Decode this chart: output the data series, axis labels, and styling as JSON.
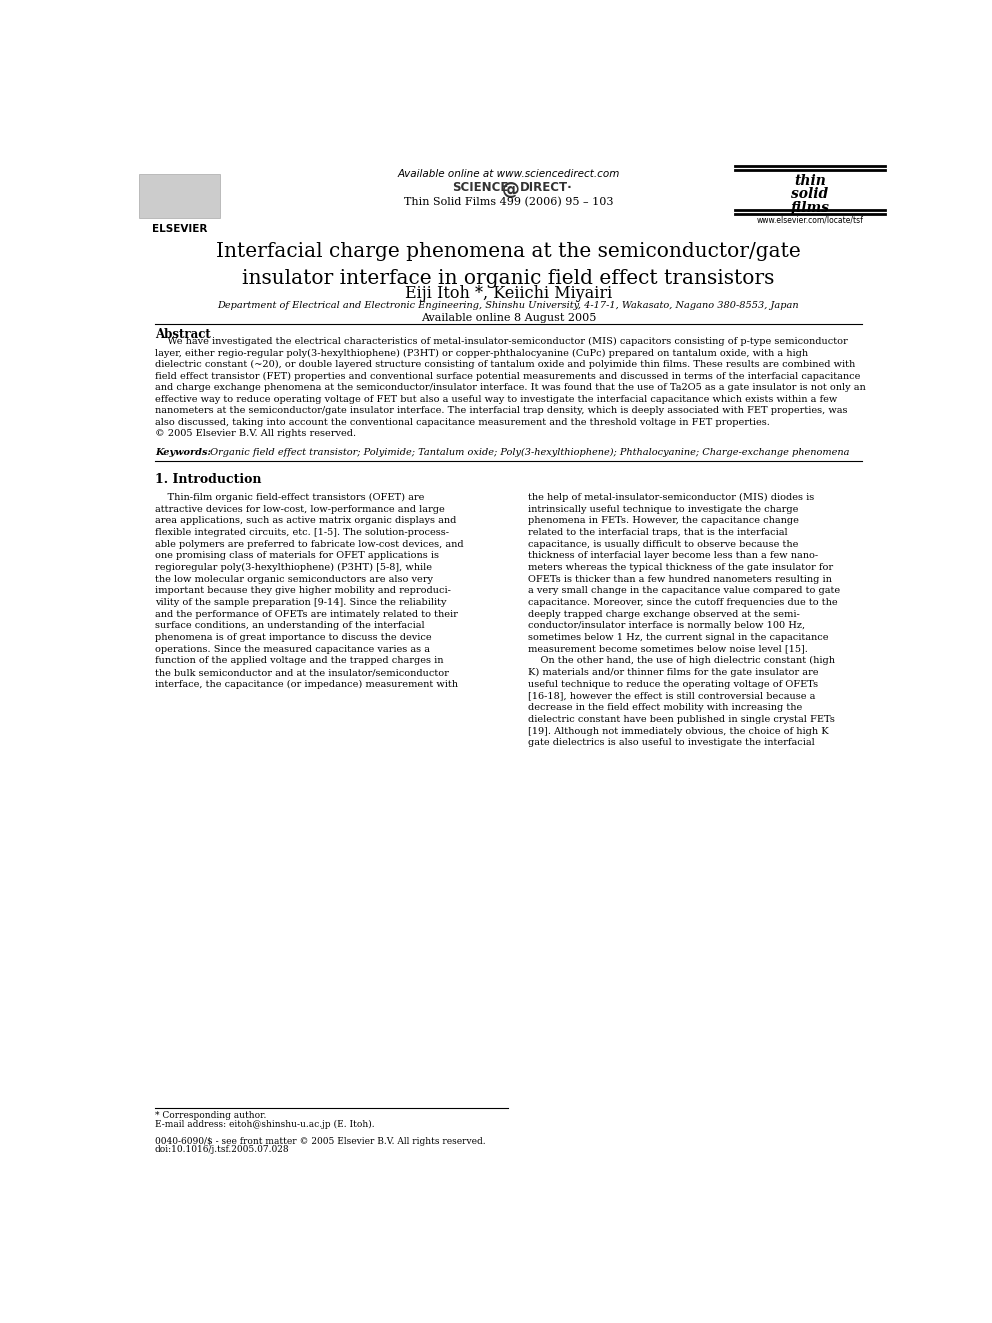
{
  "page_width": 9.92,
  "page_height": 13.23,
  "bg_color": "#ffffff",
  "header": {
    "available_online": "Available online at www.sciencedirect.com",
    "science_direct_left": "SCIENCE",
    "science_direct_right": "DIRECT",
    "journal": "Thin Solid Films 499 (2006) 95 – 103",
    "elsevier_text": "ELSEVIER",
    "website": "www.elsevier.com/locate/tsf"
  },
  "title": "Interfacial charge phenomena at the semiconductor/gate\ninsulator interface in organic field effect transistors",
  "authors": "Eiji Itoh *, Keiichi Miyairi",
  "affiliation": "Department of Electrical and Electronic Engineering, Shinshu University, 4-17-1, Wakasato, Nagano 380-8553, Japan",
  "available_online_date": "Available online 8 August 2005",
  "abstract_label": "Abstract",
  "abstract_text": "    We have investigated the electrical characteristics of metal-insulator-semiconductor (MIS) capacitors consisting of p-type semiconductor\nlayer, either regio-regular poly(3-hexylthiophene) (P3HT) or copper-phthalocyanine (CuPc) prepared on tantalum oxide, with a high\ndielectric constant (~20), or double layered structure consisting of tantalum oxide and polyimide thin films. These results are combined with\nfield effect transistor (FET) properties and conventional surface potential measurements and discussed in terms of the interfacial capacitance\nand charge exchange phenomena at the semiconductor/insulator interface. It was found that the use of Ta2O5 as a gate insulator is not only an\neffective way to reduce operating voltage of FET but also a useful way to investigate the interfacial capacitance which exists within a few\nnanometers at the semiconductor/gate insulator interface. The interfacial trap density, which is deeply associated with FET properties, was\nalso discussed, taking into account the conventional capacitance measurement and the threshold voltage in FET properties.\n© 2005 Elsevier B.V. All rights reserved.",
  "keywords_label": "Keywords:",
  "keywords_text": " Organic field effect transistor; Polyimide; Tantalum oxide; Poly(3-hexylthiophene); Phthalocyanine; Charge-exchange phenomena",
  "section1_label": "1. Introduction",
  "col1_text": "    Thin-film organic field-effect transistors (OFET) are\nattractive devices for low-cost, low-performance and large\narea applications, such as active matrix organic displays and\nflexible integrated circuits, etc. [1-5]. The solution-process-\nable polymers are preferred to fabricate low-cost devices, and\none promising class of materials for OFET applications is\nregioregular poly(3-hexylthiophene) (P3HT) [5-8], while\nthe low molecular organic semiconductors are also very\nimportant because they give higher mobility and reproduci-\nvility of the sample preparation [9-14]. Since the reliability\nand the performance of OFETs are intimately related to their\nsurface conditions, an understanding of the interfacial\nphenomena is of great importance to discuss the device\noperations. Since the measured capacitance varies as a\nfunction of the applied voltage and the trapped charges in\nthe bulk semiconductor and at the insulator/semiconductor\ninterface, the capacitance (or impedance) measurement with",
  "col2_text": "the help of metal-insulator-semiconductor (MIS) diodes is\nintrinsically useful technique to investigate the charge\nphenomena in FETs. However, the capacitance change\nrelated to the interfacial traps, that is the interfacial\ncapacitance, is usually difficult to observe because the\nthickness of interfacial layer become less than a few nano-\nmeters whereas the typical thickness of the gate insulator for\nOFETs is thicker than a few hundred nanometers resulting in\na very small change in the capacitance value compared to gate\ncapacitance. Moreover, since the cutoff frequencies due to the\ndeeply trapped charge exchange observed at the semi-\nconductor/insulator interface is normally below 100 Hz,\nsometimes below 1 Hz, the current signal in the capacitance\nmeasurement become sometimes below noise level [15].\n    On the other hand, the use of high dielectric constant (high\nK) materials and/or thinner films for the gate insulator are\nuseful technique to reduce the operating voltage of OFETs\n[16-18], however the effect is still controversial because a\ndecrease in the field effect mobility with increasing the\ndielectric constant have been published in single crystal FETs\n[19]. Although not immediately obvious, the choice of high K\ngate dielectrics is also useful to investigate the interfacial",
  "footer_note": "* Corresponding author.",
  "footer_email": "E-mail address: eitoh@shinshu-u.ac.jp (E. Itoh).",
  "footer_issn": "0040-6090/$ - see front matter © 2005 Elsevier B.V. All rights reserved.",
  "footer_doi": "doi:10.1016/j.tsf.2005.07.028"
}
